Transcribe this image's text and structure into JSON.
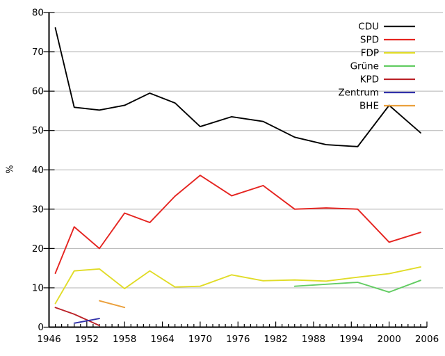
{
  "chart_data": {
    "type": "line",
    "title": "",
    "xlabel": "",
    "ylabel": "%",
    "xlim": [
      1946,
      2006
    ],
    "ylim": [
      0,
      80
    ],
    "x_ticks_major": [
      1946,
      1952,
      1958,
      1964,
      1970,
      1976,
      1982,
      1988,
      1994,
      2000,
      2006
    ],
    "x_minor_tick_step": 1,
    "y_ticks": [
      0,
      10,
      20,
      30,
      40,
      50,
      60,
      70,
      80
    ],
    "grid": "horizontal",
    "grid_color": "#b3b3b3",
    "axis_color": "#000000",
    "legend_position": "top-right",
    "series": [
      {
        "name": "CDU",
        "color": "#000000",
        "points": [
          [
            1947,
            76.1
          ],
          [
            1950,
            55.9
          ],
          [
            1954,
            55.2
          ],
          [
            1958,
            56.4
          ],
          [
            1962,
            59.5
          ],
          [
            1966,
            57.0
          ],
          [
            1970,
            51.0
          ],
          [
            1975,
            53.5
          ],
          [
            1980,
            52.3
          ],
          [
            1985,
            48.3
          ],
          [
            1990,
            46.4
          ],
          [
            1995,
            45.9
          ],
          [
            2000,
            56.4
          ],
          [
            2005,
            49.4
          ]
        ]
      },
      {
        "name": "SPD",
        "color": "#e52420",
        "points": [
          [
            1947,
            13.7
          ],
          [
            1950,
            25.5
          ],
          [
            1954,
            20.0
          ],
          [
            1958,
            29.0
          ],
          [
            1962,
            26.6
          ],
          [
            1966,
            33.3
          ],
          [
            1970,
            38.6
          ],
          [
            1975,
            33.4
          ],
          [
            1980,
            36.0
          ],
          [
            1985,
            30.0
          ],
          [
            1990,
            30.3
          ],
          [
            1995,
            30.0
          ],
          [
            2000,
            21.6
          ],
          [
            2005,
            24.1
          ]
        ]
      },
      {
        "name": "FDP",
        "color": "#e1dc28",
        "points": [
          [
            1947,
            6.0
          ],
          [
            1950,
            14.3
          ],
          [
            1954,
            14.8
          ],
          [
            1958,
            9.8
          ],
          [
            1962,
            14.3
          ],
          [
            1966,
            10.2
          ],
          [
            1970,
            10.4
          ],
          [
            1975,
            13.3
          ],
          [
            1980,
            11.8
          ],
          [
            1985,
            12.0
          ],
          [
            1990,
            11.7
          ],
          [
            1995,
            12.7
          ],
          [
            2000,
            13.6
          ],
          [
            2005,
            15.3
          ]
        ]
      },
      {
        "name": "Grüne",
        "color": "#62cc62",
        "points": [
          [
            1985,
            10.4
          ],
          [
            1990,
            10.9
          ],
          [
            1995,
            11.4
          ],
          [
            2000,
            8.9
          ],
          [
            2005,
            11.9
          ]
        ]
      },
      {
        "name": "KPD",
        "color": "#bb2228",
        "points": [
          [
            1947,
            5.0
          ],
          [
            1950,
            3.3
          ],
          [
            1954,
            0.4
          ]
        ]
      },
      {
        "name": "Zentrum",
        "color": "#3232aa",
        "points": [
          [
            1950,
            1.0
          ],
          [
            1954,
            2.2
          ]
        ]
      },
      {
        "name": "BHE",
        "color": "#eba03c",
        "points": [
          [
            1954,
            6.7
          ],
          [
            1958,
            5.0
          ]
        ]
      }
    ]
  }
}
